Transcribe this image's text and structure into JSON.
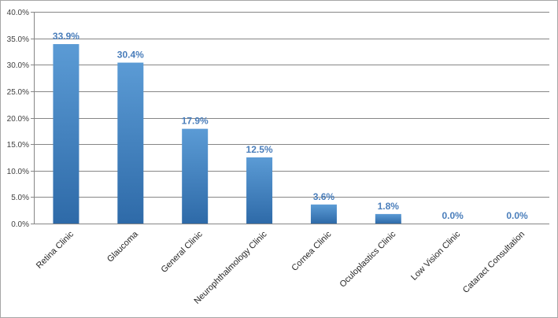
{
  "chart_data": {
    "type": "bar",
    "categories": [
      "Retina Clinic",
      "Glaucoma",
      "General Clinic",
      "Neurophthalmology Clinic",
      "Cornea Clinic",
      "Oculoplastics Clinic",
      "Low Vision Clinic",
      "Cataract Consultation"
    ],
    "values": [
      33.9,
      30.4,
      17.9,
      12.5,
      3.6,
      1.8,
      0.0,
      0.0
    ],
    "data_labels": [
      "33.9%",
      "30.4%",
      "17.9%",
      "12.5%",
      "3.6%",
      "1.8%",
      "0.0%",
      "0.0%"
    ],
    "ylim": [
      0,
      40
    ],
    "yticks": [
      0,
      5,
      10,
      15,
      20,
      25,
      30,
      35,
      40
    ],
    "ytick_labels": [
      "0.0%",
      "5.0%",
      "10.0%",
      "15.0%",
      "20.0%",
      "25.0%",
      "30.0%",
      "35.0%",
      "40.0%"
    ],
    "grid": true,
    "legend": "none",
    "bar_color_top": "#5b9bd5",
    "bar_color_bottom": "#2e6aa8",
    "label_color": "#4a7ebb",
    "grid_color": "#868686"
  }
}
